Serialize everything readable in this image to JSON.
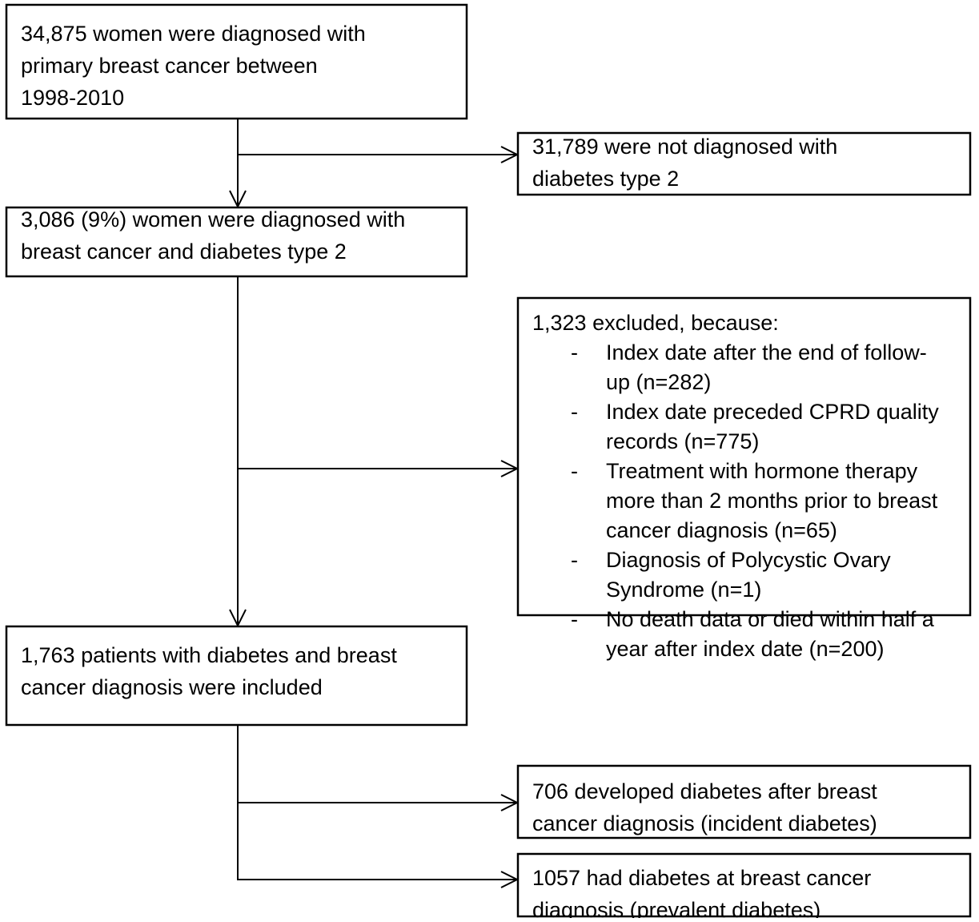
{
  "nodes": [
    {
      "lines": [
        "34,875 women were diagnosed with",
        "primary breast cancer between",
        "1998-2010"
      ]
    },
    {
      "lines": [
        "31,789 were not diagnosed with",
        "diabetes type 2"
      ]
    },
    {
      "lines": [
        "3,086 (9%) women were diagnosed with",
        "breast cancer and diabetes type 2"
      ]
    },
    {
      "title": "1,323 excluded, because:",
      "bullet": "-",
      "items": [
        {
          "lines": [
            "Index date after the end of follow-",
            "up (n=282)"
          ]
        },
        {
          "lines": [
            "Index date preceded CPRD quality",
            "records (n=775)"
          ]
        },
        {
          "lines": [
            "Treatment with hormone therapy",
            "more than 2 months prior to breast",
            "cancer diagnosis (n=65)"
          ]
        },
        {
          "lines": [
            "Diagnosis of Polycystic Ovary",
            "Syndrome (n=1)"
          ]
        },
        {
          "lines": [
            "No death data or died within half a",
            "year after index date (n=200)"
          ]
        }
      ]
    },
    {
      "lines": [
        "1,763 patients with diabetes and breast",
        "cancer diagnosis were included"
      ]
    },
    {
      "lines": [
        "706 developed diabetes after breast",
        "cancer diagnosis (incident diabetes)"
      ]
    },
    {
      "lines": [
        "1057 had diabetes at breast cancer",
        "diagnosis (prevalent diabetes)"
      ]
    }
  ]
}
